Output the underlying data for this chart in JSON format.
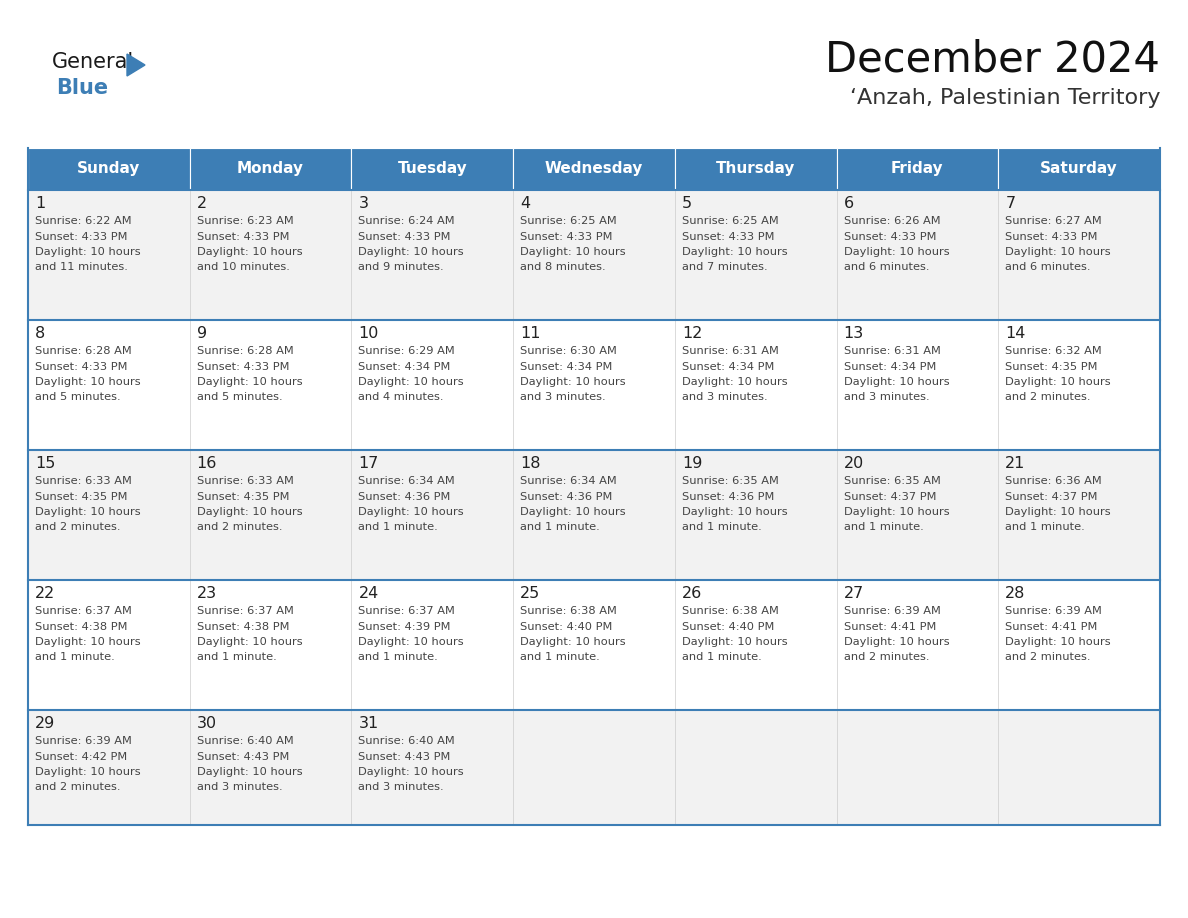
{
  "title": "December 2024",
  "subtitle": "‘Anzah, Palestinian Territory",
  "header_color": "#3d7eb5",
  "header_text_color": "#ffffff",
  "cell_bg_even": "#f2f2f2",
  "cell_bg_odd": "#ffffff",
  "border_color": "#3d7eb5",
  "text_color": "#333333",
  "day_number_color": "#222222",
  "info_text_color": "#444444",
  "day_headers": [
    "Sunday",
    "Monday",
    "Tuesday",
    "Wednesday",
    "Thursday",
    "Friday",
    "Saturday"
  ],
  "days": [
    {
      "day": 1,
      "col": 0,
      "row": 0,
      "sunrise": "6:22 AM",
      "sunset": "4:33 PM",
      "daylight": "10 hours\nand 11 minutes."
    },
    {
      "day": 2,
      "col": 1,
      "row": 0,
      "sunrise": "6:23 AM",
      "sunset": "4:33 PM",
      "daylight": "10 hours\nand 10 minutes."
    },
    {
      "day": 3,
      "col": 2,
      "row": 0,
      "sunrise": "6:24 AM",
      "sunset": "4:33 PM",
      "daylight": "10 hours\nand 9 minutes."
    },
    {
      "day": 4,
      "col": 3,
      "row": 0,
      "sunrise": "6:25 AM",
      "sunset": "4:33 PM",
      "daylight": "10 hours\nand 8 minutes."
    },
    {
      "day": 5,
      "col": 4,
      "row": 0,
      "sunrise": "6:25 AM",
      "sunset": "4:33 PM",
      "daylight": "10 hours\nand 7 minutes."
    },
    {
      "day": 6,
      "col": 5,
      "row": 0,
      "sunrise": "6:26 AM",
      "sunset": "4:33 PM",
      "daylight": "10 hours\nand 6 minutes."
    },
    {
      "day": 7,
      "col": 6,
      "row": 0,
      "sunrise": "6:27 AM",
      "sunset": "4:33 PM",
      "daylight": "10 hours\nand 6 minutes."
    },
    {
      "day": 8,
      "col": 0,
      "row": 1,
      "sunrise": "6:28 AM",
      "sunset": "4:33 PM",
      "daylight": "10 hours\nand 5 minutes."
    },
    {
      "day": 9,
      "col": 1,
      "row": 1,
      "sunrise": "6:28 AM",
      "sunset": "4:33 PM",
      "daylight": "10 hours\nand 5 minutes."
    },
    {
      "day": 10,
      "col": 2,
      "row": 1,
      "sunrise": "6:29 AM",
      "sunset": "4:34 PM",
      "daylight": "10 hours\nand 4 minutes."
    },
    {
      "day": 11,
      "col": 3,
      "row": 1,
      "sunrise": "6:30 AM",
      "sunset": "4:34 PM",
      "daylight": "10 hours\nand 3 minutes."
    },
    {
      "day": 12,
      "col": 4,
      "row": 1,
      "sunrise": "6:31 AM",
      "sunset": "4:34 PM",
      "daylight": "10 hours\nand 3 minutes."
    },
    {
      "day": 13,
      "col": 5,
      "row": 1,
      "sunrise": "6:31 AM",
      "sunset": "4:34 PM",
      "daylight": "10 hours\nand 3 minutes."
    },
    {
      "day": 14,
      "col": 6,
      "row": 1,
      "sunrise": "6:32 AM",
      "sunset": "4:35 PM",
      "daylight": "10 hours\nand 2 minutes."
    },
    {
      "day": 15,
      "col": 0,
      "row": 2,
      "sunrise": "6:33 AM",
      "sunset": "4:35 PM",
      "daylight": "10 hours\nand 2 minutes."
    },
    {
      "day": 16,
      "col": 1,
      "row": 2,
      "sunrise": "6:33 AM",
      "sunset": "4:35 PM",
      "daylight": "10 hours\nand 2 minutes."
    },
    {
      "day": 17,
      "col": 2,
      "row": 2,
      "sunrise": "6:34 AM",
      "sunset": "4:36 PM",
      "daylight": "10 hours\nand 1 minute."
    },
    {
      "day": 18,
      "col": 3,
      "row": 2,
      "sunrise": "6:34 AM",
      "sunset": "4:36 PM",
      "daylight": "10 hours\nand 1 minute."
    },
    {
      "day": 19,
      "col": 4,
      "row": 2,
      "sunrise": "6:35 AM",
      "sunset": "4:36 PM",
      "daylight": "10 hours\nand 1 minute."
    },
    {
      "day": 20,
      "col": 5,
      "row": 2,
      "sunrise": "6:35 AM",
      "sunset": "4:37 PM",
      "daylight": "10 hours\nand 1 minute."
    },
    {
      "day": 21,
      "col": 6,
      "row": 2,
      "sunrise": "6:36 AM",
      "sunset": "4:37 PM",
      "daylight": "10 hours\nand 1 minute."
    },
    {
      "day": 22,
      "col": 0,
      "row": 3,
      "sunrise": "6:37 AM",
      "sunset": "4:38 PM",
      "daylight": "10 hours\nand 1 minute."
    },
    {
      "day": 23,
      "col": 1,
      "row": 3,
      "sunrise": "6:37 AM",
      "sunset": "4:38 PM",
      "daylight": "10 hours\nand 1 minute."
    },
    {
      "day": 24,
      "col": 2,
      "row": 3,
      "sunrise": "6:37 AM",
      "sunset": "4:39 PM",
      "daylight": "10 hours\nand 1 minute."
    },
    {
      "day": 25,
      "col": 3,
      "row": 3,
      "sunrise": "6:38 AM",
      "sunset": "4:40 PM",
      "daylight": "10 hours\nand 1 minute."
    },
    {
      "day": 26,
      "col": 4,
      "row": 3,
      "sunrise": "6:38 AM",
      "sunset": "4:40 PM",
      "daylight": "10 hours\nand 1 minute."
    },
    {
      "day": 27,
      "col": 5,
      "row": 3,
      "sunrise": "6:39 AM",
      "sunset": "4:41 PM",
      "daylight": "10 hours\nand 2 minutes."
    },
    {
      "day": 28,
      "col": 6,
      "row": 3,
      "sunrise": "6:39 AM",
      "sunset": "4:41 PM",
      "daylight": "10 hours\nand 2 minutes."
    },
    {
      "day": 29,
      "col": 0,
      "row": 4,
      "sunrise": "6:39 AM",
      "sunset": "4:42 PM",
      "daylight": "10 hours\nand 2 minutes."
    },
    {
      "day": 30,
      "col": 1,
      "row": 4,
      "sunrise": "6:40 AM",
      "sunset": "4:43 PM",
      "daylight": "10 hours\nand 3 minutes."
    },
    {
      "day": 31,
      "col": 2,
      "row": 4,
      "sunrise": "6:40 AM",
      "sunset": "4:43 PM",
      "daylight": "10 hours\nand 3 minutes."
    }
  ],
  "logo_color_general": "#1a1a1a",
  "logo_color_blue": "#3d7eb5",
  "logo_triangle_color": "#3d7eb5",
  "fig_width": 11.88,
  "fig_height": 9.18,
  "dpi": 100
}
